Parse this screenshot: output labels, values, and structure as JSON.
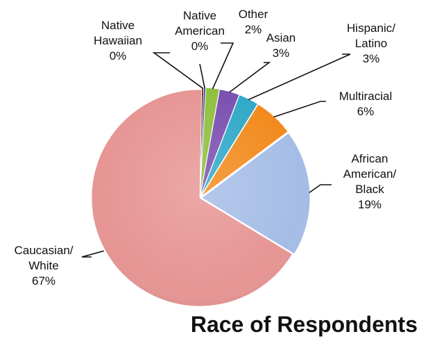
{
  "chart_data": {
    "type": "pie",
    "title": "Race of Respondents",
    "slices": [
      {
        "label_lines": [
          "Native",
          "Hawaiian"
        ],
        "value": 0.3,
        "value_label": "0%",
        "color": "#7f1f2d"
      },
      {
        "label_lines": [
          "Native",
          "American"
        ],
        "value": 0.3,
        "value_label": "0%",
        "color": "#2a5a8a"
      },
      {
        "label_lines": [
          "Other"
        ],
        "value": 2,
        "value_label": "2%",
        "color": "#8fbf3c"
      },
      {
        "label_lines": [
          "Asian"
        ],
        "value": 3,
        "value_label": "3%",
        "color": "#7a4fb0"
      },
      {
        "label_lines": [
          "Hispanic/",
          "Latino"
        ],
        "value": 3,
        "value_label": "3%",
        "color": "#2fa8c8"
      },
      {
        "label_lines": [
          "Multiracial"
        ],
        "value": 6,
        "value_label": "6%",
        "color": "#f28a1c"
      },
      {
        "label_lines": [
          "African",
          "American/",
          "Black"
        ],
        "value": 19,
        "value_label": "19%",
        "color": "#a5bde6"
      },
      {
        "label_lines": [
          "Caucasian/",
          "White"
        ],
        "value": 67,
        "value_label": "67%",
        "color": "#e69593"
      }
    ]
  }
}
